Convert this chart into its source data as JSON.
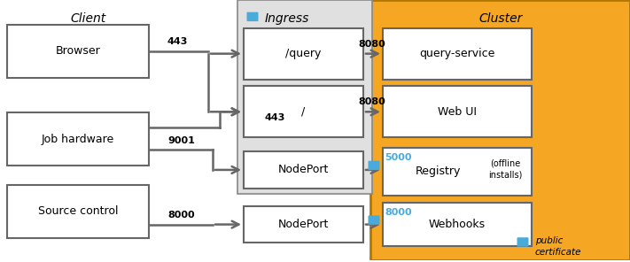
{
  "fig_width": 7.11,
  "fig_height": 2.96,
  "dpi": 100,
  "bg_color": "#ffffff",
  "cluster_bg": "#F5A623",
  "cluster_edge": "#B07800",
  "ingress_bg": "#E0E0E0",
  "ingress_edge": "#888888",
  "lock_color": "#4AABDB",
  "arrow_color": "#666666",
  "box_edge_color": "#666666",
  "client_title": "Client",
  "ingress_title": "Ingress",
  "cluster_title": "Cluster"
}
